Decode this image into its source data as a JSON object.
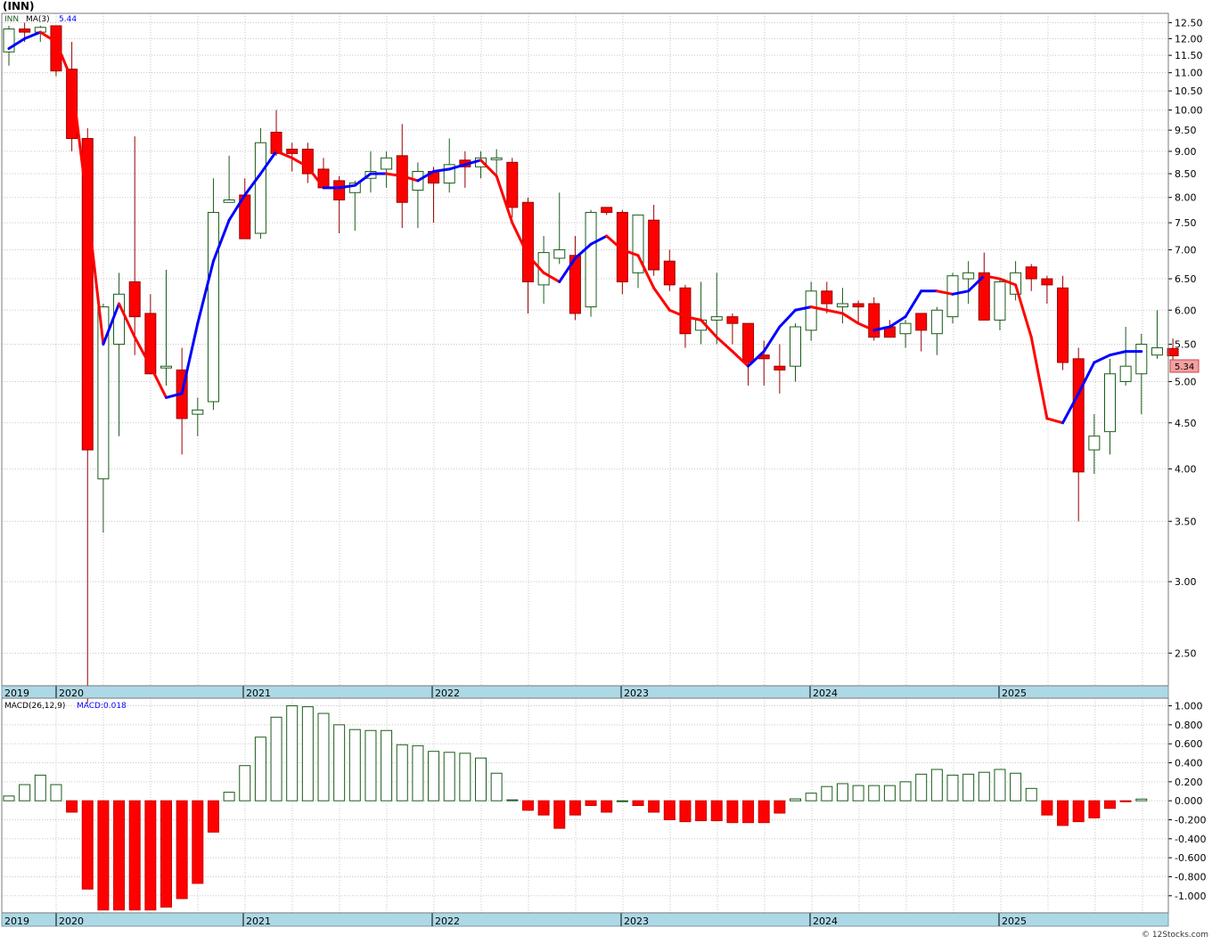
{
  "header": {
    "title": "(INN)",
    "symbol_label": "INN",
    "ma_label": "MA(3)",
    "ma_value": "5.44",
    "last_price": "5.34",
    "copyright": "© 12Stocks.com"
  },
  "macd_header": {
    "label": "MACD(26,12,9)",
    "value_label": "MACD:0.018"
  },
  "colors": {
    "up_candle_border": "#1a5c1a",
    "down_candle": "#ff0000",
    "ma_up": "#0000ff",
    "ma_down": "#ff0000",
    "axis_band": "#add8e6",
    "grid": "#c8c8c8",
    "last_price_bg": "#f4a0a0"
  },
  "chart_data": [
    {
      "type": "candlestick",
      "scale": "log",
      "ylim": [
        2.3,
        12.8
      ],
      "yticks": [
        "12.50",
        "12.00",
        "11.50",
        "11.00",
        "10.50",
        "10.00",
        "9.50",
        "9.00",
        "8.50",
        "8.00",
        "7.50",
        "7.00",
        "6.50",
        "6.00",
        "5.50",
        "5.00",
        "4.50",
        "4.00",
        "3.50",
        "3.00",
        "2.50"
      ],
      "xlabels": [
        "2019",
        "2020",
        "2021",
        "2022",
        "2023",
        "2024",
        "2025"
      ],
      "series": [
        {
          "name": "INN",
          "candles": [
            [
              11.6,
              12.4,
              11.2,
              12.3
            ],
            [
              12.3,
              12.5,
              11.9,
              12.2
            ],
            [
              12.2,
              12.4,
              11.9,
              12.35
            ],
            [
              12.4,
              12.4,
              10.9,
              11.05
            ],
            [
              11.1,
              11.9,
              9.0,
              9.3
            ],
            [
              9.3,
              9.55,
              2.2,
              4.2
            ],
            [
              3.9,
              6.1,
              3.4,
              6.05
            ],
            [
              5.5,
              6.6,
              4.35,
              6.25
            ],
            [
              6.45,
              9.35,
              5.35,
              5.9
            ],
            [
              5.95,
              6.25,
              5.1,
              5.1
            ],
            [
              5.2,
              6.65,
              4.95,
              5.2
            ],
            [
              5.15,
              5.45,
              4.15,
              4.55
            ],
            [
              4.6,
              4.8,
              4.35,
              4.65
            ],
            [
              4.75,
              8.4,
              4.65,
              7.7
            ],
            [
              7.9,
              8.9,
              7.9,
              7.95
            ],
            [
              8.05,
              8.4,
              7.2,
              7.2
            ],
            [
              7.3,
              9.55,
              7.2,
              9.2
            ],
            [
              9.45,
              10.0,
              8.9,
              8.95
            ],
            [
              9.05,
              9.2,
              8.55,
              8.95
            ],
            [
              9.05,
              9.2,
              8.3,
              8.5
            ],
            [
              8.6,
              8.85,
              8.2,
              8.2
            ],
            [
              8.35,
              8.45,
              7.3,
              7.95
            ],
            [
              8.1,
              8.35,
              7.35,
              8.3
            ],
            [
              8.4,
              9.0,
              8.1,
              8.55
            ],
            [
              8.6,
              9.0,
              8.2,
              8.85
            ],
            [
              8.9,
              9.65,
              7.4,
              7.9
            ],
            [
              8.15,
              8.75,
              7.4,
              8.55
            ],
            [
              8.55,
              8.65,
              7.5,
              8.3
            ],
            [
              8.3,
              9.3,
              8.1,
              8.7
            ],
            [
              8.8,
              9.0,
              8.2,
              8.65
            ],
            [
              8.65,
              9.0,
              8.4,
              8.85
            ],
            [
              8.85,
              9.05,
              8.45,
              8.85
            ],
            [
              8.75,
              8.85,
              7.6,
              7.8
            ],
            [
              7.9,
              8.0,
              5.95,
              6.45
            ],
            [
              6.4,
              7.25,
              6.1,
              6.95
            ],
            [
              6.85,
              8.1,
              6.75,
              7.0
            ],
            [
              6.9,
              7.25,
              5.85,
              5.95
            ],
            [
              6.05,
              7.75,
              5.9,
              7.7
            ],
            [
              7.8,
              7.8,
              7.65,
              7.7
            ],
            [
              7.7,
              7.75,
              6.25,
              6.45
            ],
            [
              6.6,
              7.65,
              6.35,
              7.65
            ],
            [
              7.55,
              7.85,
              6.55,
              6.65
            ],
            [
              6.8,
              7.0,
              6.3,
              6.4
            ],
            [
              6.35,
              6.4,
              5.45,
              5.65
            ],
            [
              5.7,
              6.45,
              5.5,
              5.85
            ],
            [
              5.85,
              6.6,
              5.5,
              5.9
            ],
            [
              5.9,
              5.95,
              5.5,
              5.8
            ],
            [
              5.8,
              5.8,
              4.95,
              5.25
            ],
            [
              5.35,
              5.55,
              4.95,
              5.3
            ],
            [
              5.2,
              5.5,
              4.85,
              5.15
            ],
            [
              5.2,
              5.8,
              5.0,
              5.75
            ],
            [
              5.7,
              6.45,
              5.55,
              6.3
            ],
            [
              6.3,
              6.45,
              5.95,
              6.1
            ],
            [
              6.05,
              6.35,
              5.8,
              6.1
            ],
            [
              6.1,
              6.15,
              5.8,
              6.05
            ],
            [
              6.1,
              6.2,
              5.55,
              5.6
            ],
            [
              5.75,
              5.85,
              5.6,
              5.6
            ],
            [
              5.65,
              5.85,
              5.45,
              5.8
            ],
            [
              5.95,
              5.95,
              5.4,
              5.7
            ],
            [
              5.65,
              6.05,
              5.35,
              6.0
            ],
            [
              5.9,
              6.6,
              5.8,
              6.55
            ],
            [
              6.5,
              6.8,
              6.1,
              6.6
            ],
            [
              6.6,
              6.95,
              5.85,
              5.85
            ],
            [
              5.85,
              6.5,
              5.7,
              6.45
            ],
            [
              6.25,
              6.8,
              6.15,
              6.6
            ],
            [
              6.7,
              6.75,
              6.3,
              6.5
            ],
            [
              6.5,
              6.55,
              6.1,
              6.4
            ],
            [
              6.35,
              6.55,
              5.15,
              5.25
            ],
            [
              5.3,
              5.45,
              3.5,
              3.97
            ],
            [
              4.2,
              4.6,
              3.95,
              4.35
            ],
            [
              4.4,
              5.3,
              4.15,
              5.1
            ],
            [
              5.0,
              5.75,
              4.95,
              5.2
            ],
            [
              5.1,
              5.65,
              4.6,
              5.5
            ],
            [
              5.35,
              6.0,
              5.3,
              5.45
            ],
            [
              5.44,
              5.58,
              5.22,
              5.34
            ]
          ]
        },
        {
          "name": "MA(3)",
          "values": [
            11.7,
            12.0,
            12.2,
            11.9,
            10.8,
            7.8,
            5.5,
            6.1,
            5.6,
            5.2,
            4.8,
            4.85,
            5.8,
            6.8,
            7.55,
            8.05,
            8.5,
            9.0,
            8.85,
            8.65,
            8.2,
            8.2,
            8.25,
            8.5,
            8.5,
            8.45,
            8.35,
            8.55,
            8.6,
            8.7,
            8.8,
            8.45,
            7.5,
            6.9,
            6.6,
            6.45,
            6.85,
            7.1,
            7.25,
            7.0,
            6.9,
            6.35,
            6.0,
            5.9,
            5.85,
            5.6,
            5.4,
            5.2,
            5.4,
            5.75,
            6.0,
            6.05,
            6.0,
            5.95,
            5.8,
            5.7,
            5.75,
            5.9,
            6.3,
            6.3,
            6.25,
            6.3,
            6.55,
            6.5,
            6.4,
            5.6,
            4.55,
            4.5,
            4.85,
            5.25,
            5.35,
            5.4,
            5.4
          ]
        }
      ]
    },
    {
      "type": "bar",
      "title": "MACD(26,12,9)",
      "ylim": [
        -1.18,
        1.08
      ],
      "yticks": [
        "1.000",
        "0.800",
        "0.600",
        "0.400",
        "0.200",
        "0.000",
        "-0.200",
        "-0.400",
        "-0.600",
        "-0.800",
        "-1.000"
      ],
      "xlabels": [
        "2019",
        "2020",
        "2021",
        "2022",
        "2023",
        "2024",
        "2025"
      ],
      "values": [
        0.05,
        0.17,
        0.27,
        0.17,
        -0.12,
        -0.93,
        -1.15,
        -1.15,
        -1.15,
        -1.15,
        -1.12,
        -1.03,
        -0.87,
        -0.33,
        0.09,
        0.37,
        0.67,
        0.88,
        1.0,
        0.99,
        0.92,
        0.8,
        0.75,
        0.74,
        0.74,
        0.59,
        0.58,
        0.52,
        0.51,
        0.5,
        0.45,
        0.29,
        0.01,
        -0.1,
        -0.15,
        -0.29,
        -0.15,
        -0.05,
        -0.12,
        0.0,
        -0.05,
        -0.12,
        -0.2,
        -0.22,
        -0.21,
        -0.21,
        -0.23,
        -0.23,
        -0.23,
        -0.13,
        0.02,
        0.08,
        0.15,
        0.18,
        0.16,
        0.16,
        0.16,
        0.2,
        0.28,
        0.33,
        0.27,
        0.28,
        0.3,
        0.33,
        0.29,
        0.13,
        -0.15,
        -0.26,
        -0.22,
        -0.18,
        -0.08,
        -0.01,
        0.018
      ]
    }
  ]
}
